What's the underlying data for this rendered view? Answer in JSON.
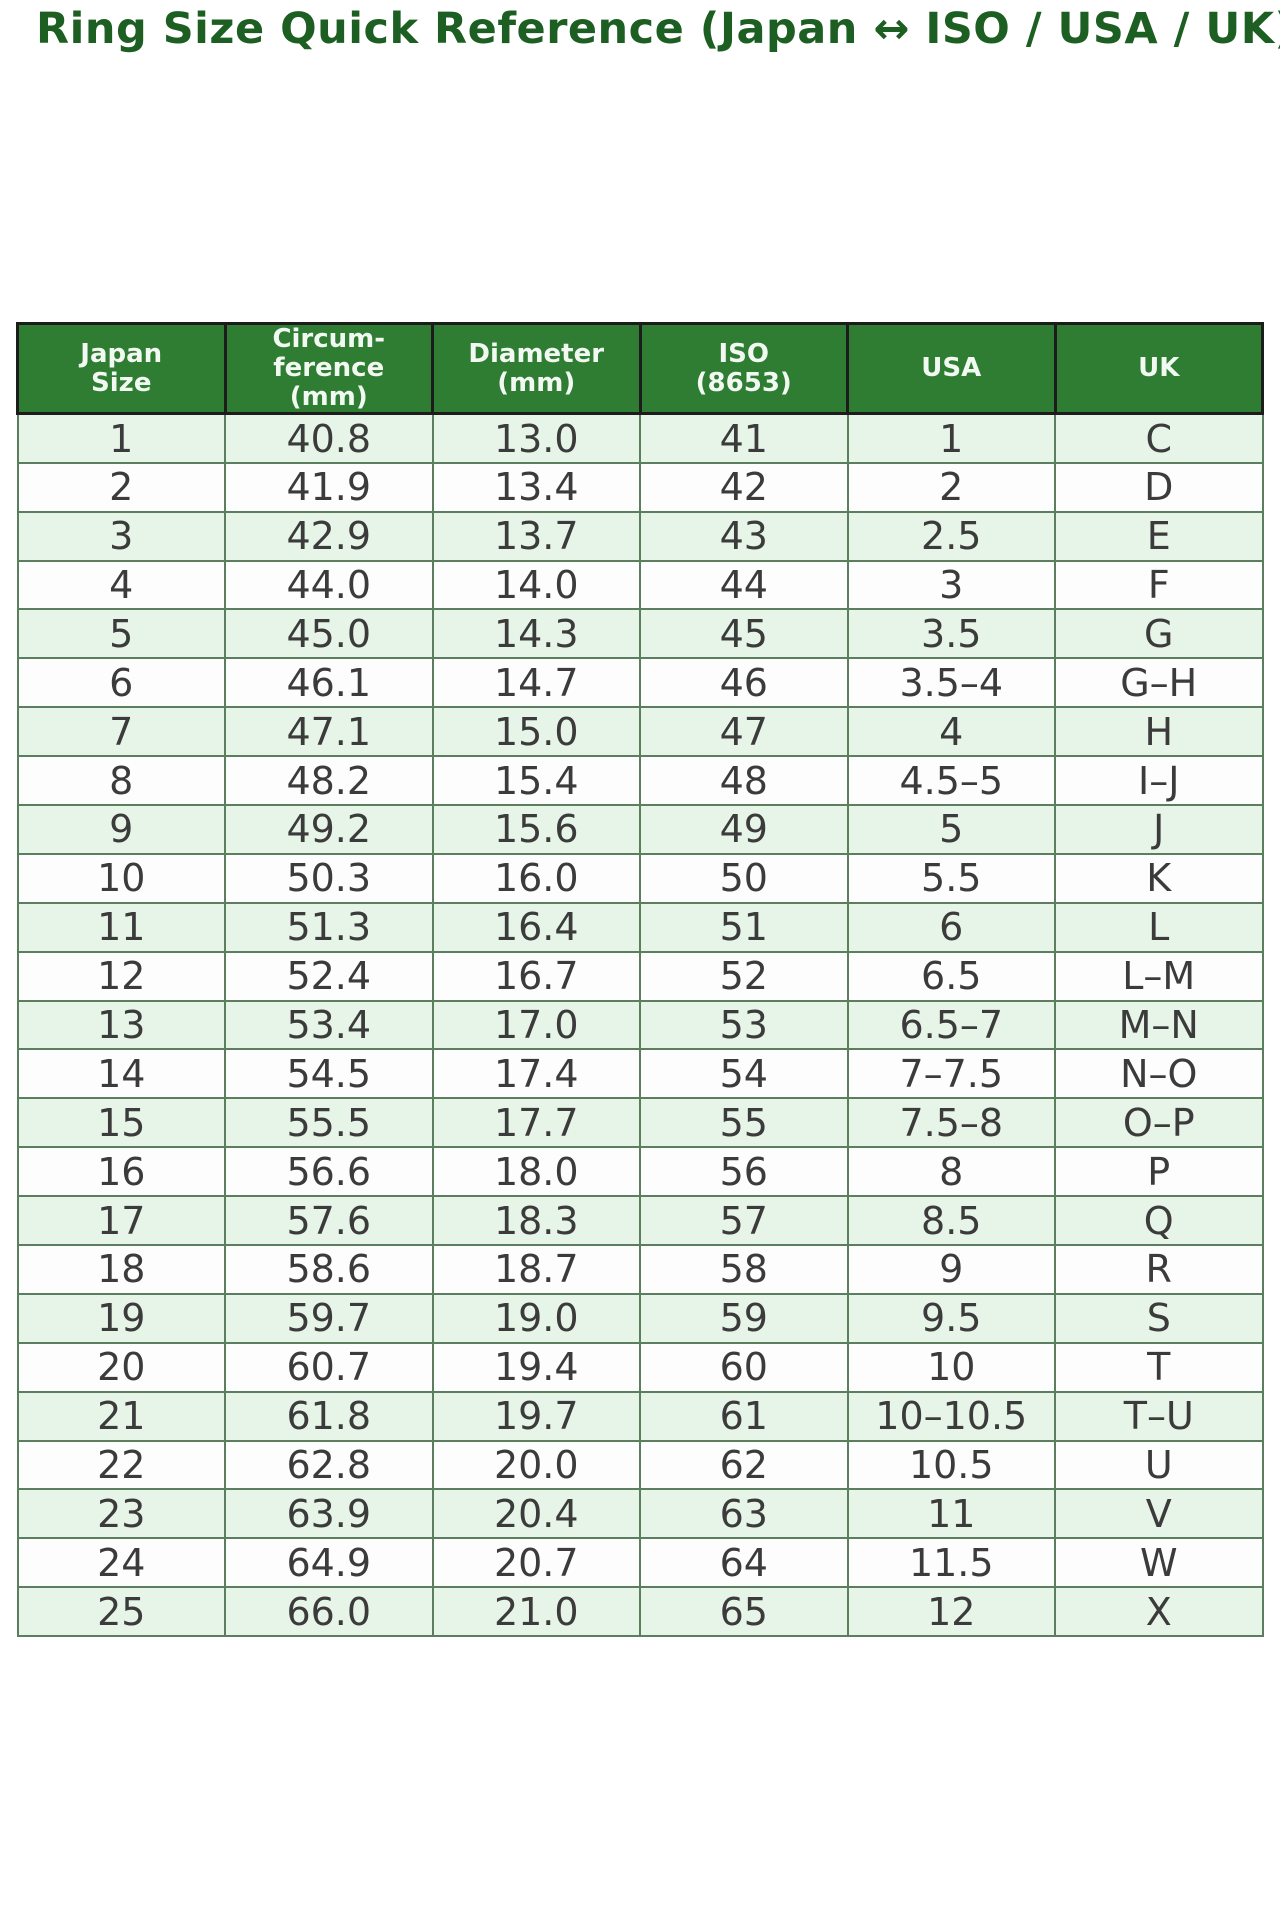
{
  "page": {
    "title": "Ring Size Quick Reference (Japan ↔ ISO / USA / UK)"
  },
  "colors": {
    "title_text": "#1d5e23",
    "header_background": "#2e7d32",
    "header_text": "#f2f9f2",
    "header_border": "#1c1c1c",
    "body_border": "#5b7e5f",
    "row_alt_green": "#e7f4e8",
    "row_white": "#fdfdfd",
    "body_text": "#3b3b3b",
    "page_background": "#ffffff"
  },
  "table": {
    "columns": [
      {
        "key": "japan",
        "label": "Japan\nSize"
      },
      {
        "key": "circumference",
        "label": "Circum-\nference\n(mm)"
      },
      {
        "key": "diameter",
        "label": "Diameter\n(mm)"
      },
      {
        "key": "iso",
        "label": "ISO\n(8653)"
      },
      {
        "key": "usa",
        "label": "USA"
      },
      {
        "key": "uk",
        "label": "UK"
      }
    ],
    "rows": [
      {
        "japan": "1",
        "circumference": "40.8",
        "diameter": "13.0",
        "iso": "41",
        "usa": "1",
        "uk": "C"
      },
      {
        "japan": "2",
        "circumference": "41.9",
        "diameter": "13.4",
        "iso": "42",
        "usa": "2",
        "uk": "D"
      },
      {
        "japan": "3",
        "circumference": "42.9",
        "diameter": "13.7",
        "iso": "43",
        "usa": "2.5",
        "uk": "E"
      },
      {
        "japan": "4",
        "circumference": "44.0",
        "diameter": "14.0",
        "iso": "44",
        "usa": "3",
        "uk": "F"
      },
      {
        "japan": "5",
        "circumference": "45.0",
        "diameter": "14.3",
        "iso": "45",
        "usa": "3.5",
        "uk": "G"
      },
      {
        "japan": "6",
        "circumference": "46.1",
        "diameter": "14.7",
        "iso": "46",
        "usa": "3.5–4",
        "uk": "G–H"
      },
      {
        "japan": "7",
        "circumference": "47.1",
        "diameter": "15.0",
        "iso": "47",
        "usa": "4",
        "uk": "H"
      },
      {
        "japan": "8",
        "circumference": "48.2",
        "diameter": "15.4",
        "iso": "48",
        "usa": "4.5–5",
        "uk": "I–J"
      },
      {
        "japan": "9",
        "circumference": "49.2",
        "diameter": "15.6",
        "iso": "49",
        "usa": "5",
        "uk": "J"
      },
      {
        "japan": "10",
        "circumference": "50.3",
        "diameter": "16.0",
        "iso": "50",
        "usa": "5.5",
        "uk": "K"
      },
      {
        "japan": "11",
        "circumference": "51.3",
        "diameter": "16.4",
        "iso": "51",
        "usa": "6",
        "uk": "L"
      },
      {
        "japan": "12",
        "circumference": "52.4",
        "diameter": "16.7",
        "iso": "52",
        "usa": "6.5",
        "uk": "L–M"
      },
      {
        "japan": "13",
        "circumference": "53.4",
        "diameter": "17.0",
        "iso": "53",
        "usa": "6.5–7",
        "uk": "M–N"
      },
      {
        "japan": "14",
        "circumference": "54.5",
        "diameter": "17.4",
        "iso": "54",
        "usa": "7–7.5",
        "uk": "N–O"
      },
      {
        "japan": "15",
        "circumference": "55.5",
        "diameter": "17.7",
        "iso": "55",
        "usa": "7.5–8",
        "uk": "O–P"
      },
      {
        "japan": "16",
        "circumference": "56.6",
        "diameter": "18.0",
        "iso": "56",
        "usa": "8",
        "uk": "P"
      },
      {
        "japan": "17",
        "circumference": "57.6",
        "diameter": "18.3",
        "iso": "57",
        "usa": "8.5",
        "uk": "Q"
      },
      {
        "japan": "18",
        "circumference": "58.6",
        "diameter": "18.7",
        "iso": "58",
        "usa": "9",
        "uk": "R"
      },
      {
        "japan": "19",
        "circumference": "59.7",
        "diameter": "19.0",
        "iso": "59",
        "usa": "9.5",
        "uk": "S"
      },
      {
        "japan": "20",
        "circumference": "60.7",
        "diameter": "19.4",
        "iso": "60",
        "usa": "10",
        "uk": "T"
      },
      {
        "japan": "21",
        "circumference": "61.8",
        "diameter": "19.7",
        "iso": "61",
        "usa": "10–10.5",
        "uk": "T–U"
      },
      {
        "japan": "22",
        "circumference": "62.8",
        "diameter": "20.0",
        "iso": "62",
        "usa": "10.5",
        "uk": "U"
      },
      {
        "japan": "23",
        "circumference": "63.9",
        "diameter": "20.4",
        "iso": "63",
        "usa": "11",
        "uk": "V"
      },
      {
        "japan": "24",
        "circumference": "64.9",
        "diameter": "20.7",
        "iso": "64",
        "usa": "11.5",
        "uk": "W"
      },
      {
        "japan": "25",
        "circumference": "66.0",
        "diameter": "21.0",
        "iso": "65",
        "usa": "12",
        "uk": "X"
      }
    ]
  }
}
